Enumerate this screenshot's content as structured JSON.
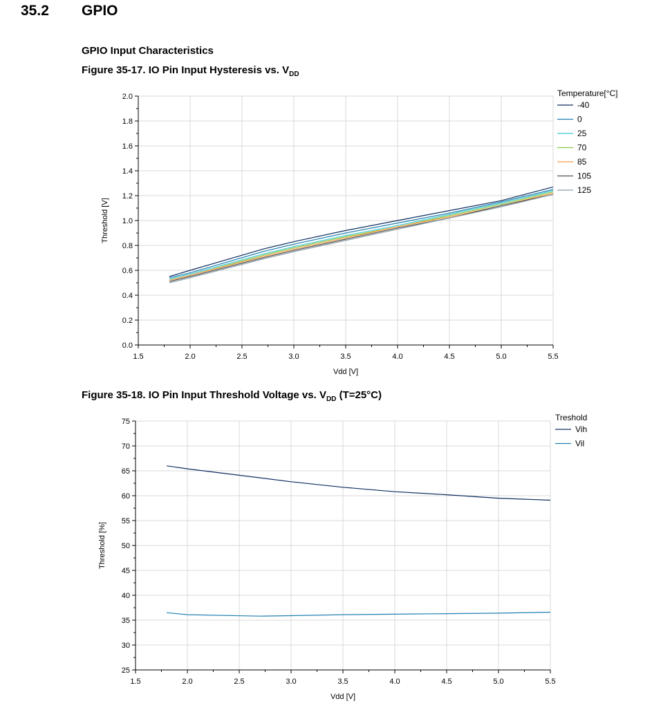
{
  "section": {
    "number": "35.2",
    "title": "GPIO"
  },
  "subheading": "GPIO Input Characteristics",
  "charts": [
    {
      "caption": "Figure 35-17.  IO Pin Input Hysteresis vs. V",
      "caption_sub": "DD",
      "caption_tail": ""
    },
    {
      "caption": "Figure 35-18.  IO Pin Input Threshold Voltage vs. V",
      "caption_sub": "DD",
      "caption_tail": " (T=25°C)"
    }
  ],
  "chart_data": [
    {
      "type": "line",
      "xlabel": "Vdd [V]",
      "ylabel": "Threshold [V]",
      "xlim": [
        1.5,
        5.5
      ],
      "ylim": [
        0.0,
        2.0
      ],
      "xticks": [
        "1.5",
        "2.0",
        "2.5",
        "3.0",
        "3.5",
        "4.0",
        "4.5",
        "5.0",
        "5.5"
      ],
      "yticks": [
        "0.0",
        "0.2",
        "0.4",
        "0.6",
        "0.8",
        "1.0",
        "1.2",
        "1.4",
        "1.6",
        "1.8",
        "2.0"
      ],
      "grid": true,
      "legend_title": "Temperature[°C]",
      "legend_position": "right",
      "x": [
        1.8,
        2.0,
        2.7,
        3.0,
        3.5,
        4.0,
        4.5,
        5.0,
        5.5
      ],
      "series": [
        {
          "name": "-40",
          "color": "#0d2d5e",
          "values": [
            0.55,
            0.6,
            0.77,
            0.83,
            0.92,
            1.0,
            1.08,
            1.16,
            1.27
          ]
        },
        {
          "name": "0",
          "color": "#1f7fb0",
          "values": [
            0.54,
            0.58,
            0.75,
            0.81,
            0.9,
            0.98,
            1.06,
            1.15,
            1.25
          ]
        },
        {
          "name": "25",
          "color": "#3cc7cf",
          "values": [
            0.53,
            0.57,
            0.73,
            0.79,
            0.88,
            0.96,
            1.05,
            1.14,
            1.24
          ]
        },
        {
          "name": "70",
          "color": "#8dc63f",
          "values": [
            0.52,
            0.56,
            0.72,
            0.78,
            0.87,
            0.95,
            1.04,
            1.13,
            1.23
          ]
        },
        {
          "name": "85",
          "color": "#f39c4a",
          "values": [
            0.52,
            0.56,
            0.71,
            0.77,
            0.86,
            0.95,
            1.03,
            1.12,
            1.22
          ]
        },
        {
          "name": "105",
          "color": "#4d4d4d",
          "values": [
            0.51,
            0.55,
            0.7,
            0.76,
            0.85,
            0.94,
            1.02,
            1.12,
            1.21
          ]
        },
        {
          "name": "125",
          "color": "#8a9ea8",
          "values": [
            0.5,
            0.54,
            0.69,
            0.75,
            0.84,
            0.93,
            1.02,
            1.11,
            1.21
          ]
        }
      ]
    },
    {
      "type": "line",
      "xlabel": "Vdd [V]",
      "ylabel": "Threshold [%]",
      "xlim": [
        1.5,
        5.5
      ],
      "ylim": [
        25,
        75
      ],
      "xticks": [
        "1.5",
        "2.0",
        "2.5",
        "3.0",
        "3.5",
        "4.0",
        "4.5",
        "5.0",
        "5.5"
      ],
      "yticks": [
        "25",
        "30",
        "35",
        "40",
        "45",
        "50",
        "55",
        "60",
        "65",
        "70",
        "75"
      ],
      "grid": true,
      "legend_title": "Treshold",
      "legend_position": "right",
      "x": [
        1.8,
        2.0,
        2.7,
        3.0,
        3.5,
        4.0,
        4.5,
        5.0,
        5.5
      ],
      "series": [
        {
          "name": "Vih",
          "color": "#0d2d5e",
          "values": [
            66.0,
            65.4,
            63.6,
            62.8,
            61.7,
            60.8,
            60.2,
            59.5,
            59.1
          ]
        },
        {
          "name": "Vil",
          "color": "#1f7fb0",
          "values": [
            36.5,
            36.1,
            35.8,
            35.9,
            36.1,
            36.2,
            36.3,
            36.4,
            36.6
          ]
        }
      ]
    }
  ]
}
